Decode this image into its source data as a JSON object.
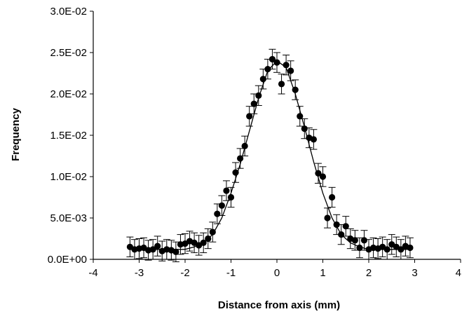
{
  "chart_data": {
    "type": "scatter",
    "title": "",
    "xlabel": "Distance from axis (mm)",
    "ylabel": "Frequency",
    "xlim": [
      -4,
      4
    ],
    "ylim": [
      0,
      0.03
    ],
    "grid": false,
    "legend": "none",
    "x_ticks": [
      {
        "value": -4,
        "label": "-4"
      },
      {
        "value": -3,
        "label": "-3"
      },
      {
        "value": -2,
        "label": "-2"
      },
      {
        "value": -1,
        "label": "-1"
      },
      {
        "value": 0,
        "label": "0"
      },
      {
        "value": 1,
        "label": "1"
      },
      {
        "value": 2,
        "label": "2"
      },
      {
        "value": 3,
        "label": "3"
      },
      {
        "value": 4,
        "label": "4"
      }
    ],
    "y_ticks": [
      {
        "value": 0,
        "label": "0.0E+00"
      },
      {
        "value": 0.005,
        "label": "5.0E-03"
      },
      {
        "value": 0.01,
        "label": "1.0E-02"
      },
      {
        "value": 0.015,
        "label": "1.5E-02"
      },
      {
        "value": 0.02,
        "label": "2.0E-02"
      },
      {
        "value": 0.025,
        "label": "2.5E-02"
      },
      {
        "value": 0.03,
        "label": "3.0E-02"
      }
    ],
    "series": [
      {
        "type": "scatter",
        "error_bar": 0.0012,
        "points": [
          [
            -3.2,
            0.0015
          ],
          [
            -3.1,
            0.0012
          ],
          [
            -3.0,
            0.0013
          ],
          [
            -2.9,
            0.0014
          ],
          [
            -2.8,
            0.0011
          ],
          [
            -2.7,
            0.0012
          ],
          [
            -2.6,
            0.0016
          ],
          [
            -2.5,
            0.001
          ],
          [
            -2.4,
            0.0012
          ],
          [
            -2.3,
            0.0011
          ],
          [
            -2.2,
            0.0009
          ],
          [
            -2.1,
            0.0018
          ],
          [
            -2.0,
            0.0019
          ],
          [
            -1.9,
            0.0022
          ],
          [
            -1.8,
            0.002
          ],
          [
            -1.7,
            0.0017
          ],
          [
            -1.6,
            0.002
          ],
          [
            -1.5,
            0.0025
          ],
          [
            -1.4,
            0.0033
          ],
          [
            -1.3,
            0.0055
          ],
          [
            -1.2,
            0.0065
          ],
          [
            -1.1,
            0.0083
          ],
          [
            -1.0,
            0.0075
          ],
          [
            -0.9,
            0.0105
          ],
          [
            -0.8,
            0.0122
          ],
          [
            -0.7,
            0.0137
          ],
          [
            -0.6,
            0.0173
          ],
          [
            -0.5,
            0.0188
          ],
          [
            -0.4,
            0.0198
          ],
          [
            -0.3,
            0.0218
          ],
          [
            -0.2,
            0.023
          ],
          [
            -0.1,
            0.0242
          ],
          [
            0.0,
            0.0238
          ],
          [
            0.1,
            0.0212
          ],
          [
            0.2,
            0.0235
          ],
          [
            0.3,
            0.0228
          ],
          [
            0.4,
            0.0205
          ],
          [
            0.5,
            0.0173
          ],
          [
            0.6,
            0.0158
          ],
          [
            0.7,
            0.0147
          ],
          [
            0.8,
            0.0145
          ],
          [
            0.9,
            0.0104
          ],
          [
            1.0,
            0.01
          ],
          [
            1.1,
            0.005
          ],
          [
            1.2,
            0.0075
          ],
          [
            1.3,
            0.0042
          ],
          [
            1.4,
            0.003
          ],
          [
            1.5,
            0.004
          ],
          [
            1.6,
            0.0025
          ],
          [
            1.7,
            0.0023
          ],
          [
            1.8,
            0.0014
          ],
          [
            1.9,
            0.0023
          ],
          [
            2.0,
            0.0012
          ],
          [
            2.1,
            0.0014
          ],
          [
            2.2,
            0.0013
          ],
          [
            2.3,
            0.0015
          ],
          [
            2.4,
            0.0012
          ],
          [
            2.5,
            0.0018
          ],
          [
            2.6,
            0.0015
          ],
          [
            2.7,
            0.0012
          ],
          [
            2.8,
            0.0016
          ],
          [
            2.9,
            0.0014
          ]
        ]
      },
      {
        "type": "line",
        "points": [
          [
            -3.2,
            0.0012
          ],
          [
            -2.0,
            0.0012
          ],
          [
            -1.8,
            0.0015
          ],
          [
            -1.6,
            0.002
          ],
          [
            -1.4,
            0.003
          ],
          [
            -1.2,
            0.005
          ],
          [
            -1.0,
            0.008
          ],
          [
            -0.8,
            0.0115
          ],
          [
            -0.6,
            0.0155
          ],
          [
            -0.4,
            0.0195
          ],
          [
            -0.2,
            0.0228
          ],
          [
            0.0,
            0.024
          ],
          [
            0.2,
            0.0232
          ],
          [
            0.4,
            0.02
          ],
          [
            0.6,
            0.016
          ],
          [
            0.8,
            0.0118
          ],
          [
            1.0,
            0.008
          ],
          [
            1.2,
            0.005
          ],
          [
            1.4,
            0.003
          ],
          [
            1.6,
            0.002
          ],
          [
            1.8,
            0.0015
          ],
          [
            2.0,
            0.0012
          ],
          [
            2.9,
            0.0012
          ]
        ]
      }
    ]
  }
}
